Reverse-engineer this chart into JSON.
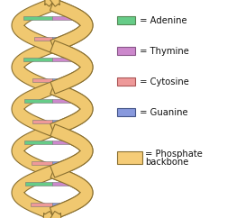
{
  "background_color": "#ffffff",
  "legend_items": [
    {
      "label": " = Adenine",
      "color": "#66cc88",
      "edge": "#558855"
    },
    {
      "label": " = Thymine",
      "color": "#cc88cc",
      "edge": "#885588"
    },
    {
      "label": " = Cytosine",
      "color": "#ee9999",
      "edge": "#aa5555"
    },
    {
      "label": " = Guanine",
      "color": "#8899dd",
      "edge": "#445588"
    }
  ],
  "backbone_fill": "#f0c870",
  "backbone_edge": "#8a7030",
  "base_colors": {
    "adenine": "#66cc88",
    "thymine": "#cc88cc",
    "cytosine": "#ee9999",
    "guanine": "#8899dd"
  },
  "base_edge": "#777777",
  "pair_defs": [
    [
      "thymine",
      "adenine"
    ],
    [
      "guanine",
      "cytosine"
    ],
    [
      "adenine",
      "thymine"
    ],
    [
      "cytosine",
      "guanine"
    ],
    [
      "thymine",
      "adenine"
    ],
    [
      "guanine",
      "cytosine"
    ],
    [
      "adenine",
      "thymine"
    ],
    [
      "cytosine",
      "guanine"
    ],
    [
      "thymine",
      "adenine"
    ],
    [
      "guanine",
      "cytosine"
    ]
  ],
  "legend_box_fill": "#f5cc77",
  "legend_box_edge": "#8a7030",
  "font_size": 7.2,
  "fig_width": 2.52,
  "fig_height": 2.42,
  "dpi": 100
}
